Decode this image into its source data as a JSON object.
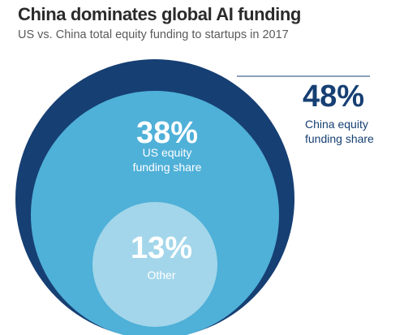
{
  "title": "China dominates global AI funding",
  "subtitle": "US vs. China total equity funding to startups in 2017",
  "colors": {
    "china": "#163f73",
    "us": "#4fb0d8",
    "other": "#a3d6ea",
    "china_text": "#163f73",
    "inner_text": "#ffffff"
  },
  "chart_data": {
    "type": "nested-circles",
    "title": "China dominates global AI funding",
    "subtitle": "US vs. China total equity funding to startups in 2017",
    "series": [
      {
        "name": "China",
        "value": 48,
        "value_label": "48%",
        "label_lines": [
          "China equity",
          "funding share"
        ]
      },
      {
        "name": "US",
        "value": 38,
        "value_label": "38%",
        "label_lines": [
          "US equity",
          "funding share"
        ]
      },
      {
        "name": "Other",
        "value": 13,
        "value_label": "13%",
        "label_lines": [
          "Other"
        ]
      }
    ]
  }
}
